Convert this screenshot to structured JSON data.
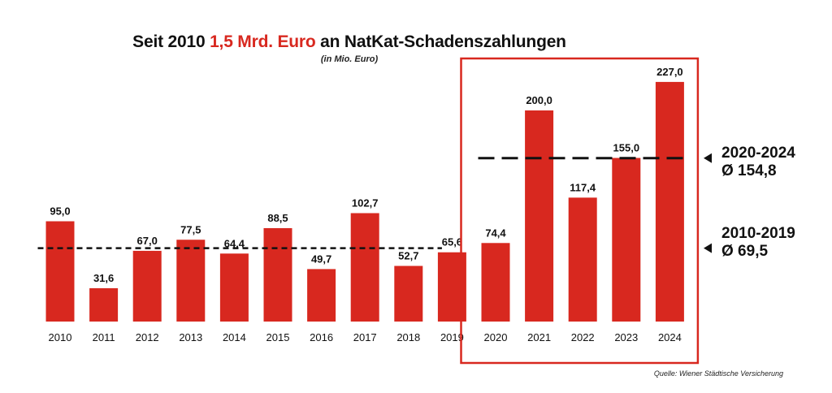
{
  "title": {
    "prefix": "Seit 2010 ",
    "highlight": "1,5 Mrd. Euro",
    "suffix": " an NatKat-Schadenszahlungen"
  },
  "subtitle": "(in Mio. Euro)",
  "source": "Quelle: Wiener Städtische Versicherung",
  "colors": {
    "bar": "#d8281f",
    "highlight_box": "#d8281f",
    "text": "#111111"
  },
  "averages": [
    {
      "period": "2010-2019",
      "value_label": "Ø 69,5",
      "value": 69.5
    },
    {
      "period": "2020-2024",
      "value_label": "Ø 154,8",
      "value": 154.8
    }
  ],
  "chart_data": {
    "type": "bar",
    "categories": [
      "2010",
      "2011",
      "2012",
      "2013",
      "2014",
      "2015",
      "2016",
      "2017",
      "2018",
      "2019",
      "2020",
      "2021",
      "2022",
      "2023",
      "2024"
    ],
    "values": [
      95.0,
      31.6,
      67.0,
      77.5,
      64.4,
      88.5,
      49.7,
      102.7,
      52.7,
      65.6,
      74.4,
      200.0,
      117.4,
      155.0,
      227.0
    ],
    "value_labels": [
      "95,0",
      "31,6",
      "67,0",
      "77,5",
      "64,4",
      "88,5",
      "49,7",
      "102,7",
      "52,7",
      "65,6",
      "74,4",
      "200,0",
      "117,4",
      "155,0",
      "227,0"
    ],
    "title": "Seit 2010 1,5 Mrd. Euro an NatKat-Schadenszahlungen",
    "ylabel": "",
    "xlabel": "",
    "ylim": [
      0,
      240
    ],
    "grid": false,
    "highlighted_range": [
      "2020",
      "2024"
    ],
    "reference_lines": [
      {
        "label": "2010-2019",
        "value": 69.5,
        "range": [
          "2010",
          "2019"
        ]
      },
      {
        "label": "2020-2024",
        "value": 154.8,
        "range": [
          "2020",
          "2024"
        ]
      }
    ]
  }
}
